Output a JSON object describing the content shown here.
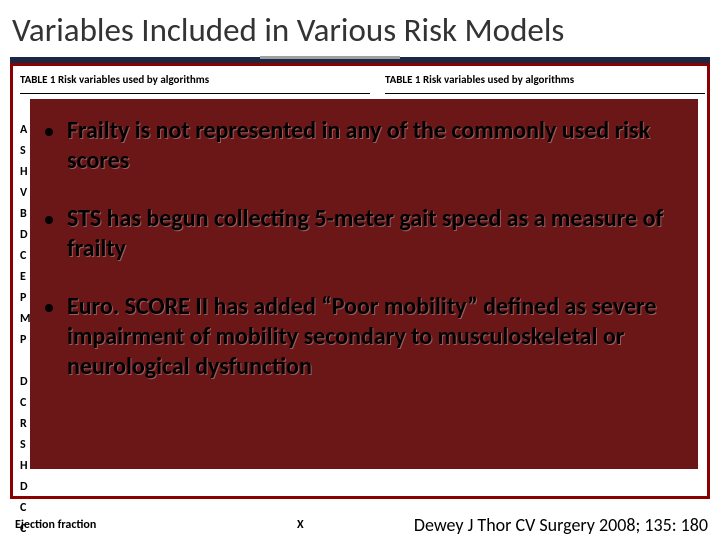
{
  "title": "Variables Included in Various Risk Models",
  "table_header_left": "TABLE 1   Risk variables used by algorithms",
  "table_header_right": "TABLE 1   Risk variables used by algorithms",
  "row_letters": "A\nS\nH\nV\nB\nD\nC\nE\nP\nM\nP\n\nD\nC\nR\nS\nH\nD\nC\nC",
  "ejection_label": "Ejection fraction",
  "ejection_x": "X",
  "bullets": [
    "Frailty is not represented in any of the commonly used risk scores",
    "STS has begun collecting 5-meter gait speed as a measure of frailty",
    "Euro. SCORE II has added “Poor mobility” defined as severe impairment of mobility secondary to musculoskeletal or neurological dysfunction"
  ],
  "citation": "Dewey J Thor CV Surgery 2008; 135: 180",
  "colors": {
    "title_underline": "#1a2844",
    "red_border": "#8b0000",
    "maroon_bg": "#6b1717"
  }
}
